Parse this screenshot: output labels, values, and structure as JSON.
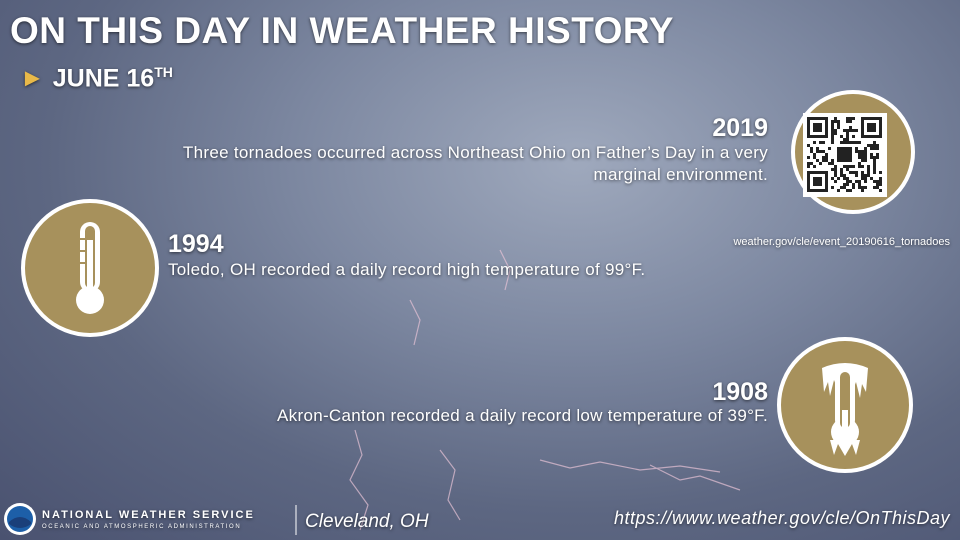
{
  "header": {
    "title": "ON THIS DAY IN WEATHER HISTORY",
    "date": "JUNE 16",
    "date_suffix": "TH"
  },
  "events": [
    {
      "year": "2019",
      "text": "Three tornadoes occurred across Northeast Ohio on Father’s Day in a very marginal environment.",
      "link": "weather.gov/cle/event_20190616_tornadoes"
    },
    {
      "year": "1994",
      "text": "Toledo, OH recorded a daily record high temperature of 99°F."
    },
    {
      "year": "1908",
      "text": "Akron-Canton recorded a daily record low temperature of 39°F."
    }
  ],
  "footer": {
    "agency": "NATIONAL WEATHER SERVICE",
    "subagency": "OCEANIC AND ATMOSPHERIC ADMINISTRATION",
    "office": "Cleveland, OH",
    "url": "https://www.weather.gov/cle/OnThisDay"
  }
}
